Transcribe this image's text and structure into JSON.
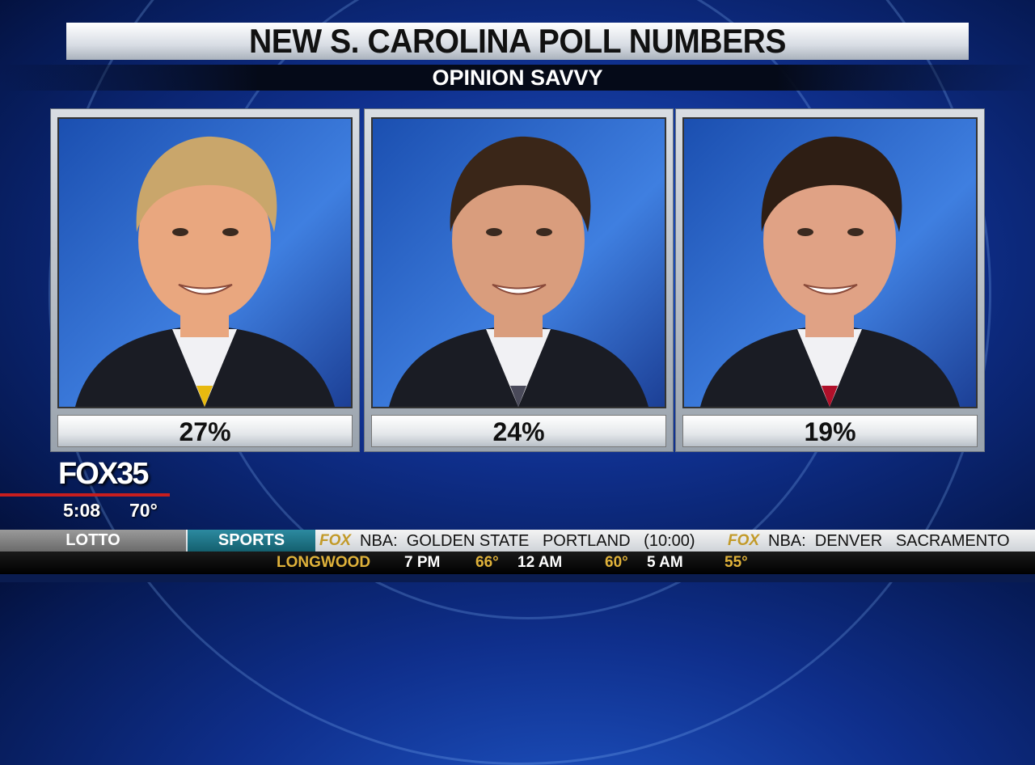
{
  "header": {
    "title": "NEW S. CAROLINA POLL NUMBERS",
    "subtitle": "OPINION SAVVY"
  },
  "candidates": [
    {
      "percent": "27%"
    },
    {
      "percent": "24%"
    },
    {
      "percent": "19%"
    }
  ],
  "station": {
    "logo": "FOX35",
    "time": "5:08",
    "temperature": "70°"
  },
  "ticker": {
    "tabs": [
      "LOTTO",
      "SPORTS"
    ],
    "items": [
      {
        "network": "FOX",
        "text": "NBA:  GOLDEN STATE   PORTLAND   (10:00)"
      },
      {
        "network": "FOX",
        "text": "NBA:  DENVER   SACRAMENTO"
      }
    ],
    "weather": {
      "location": "LONGWOOD",
      "forecast": [
        {
          "time": "7 PM",
          "temp": "66°"
        },
        {
          "time": "12 AM",
          "temp": "60°"
        },
        {
          "time": "5 AM",
          "temp": "55°"
        }
      ]
    }
  }
}
